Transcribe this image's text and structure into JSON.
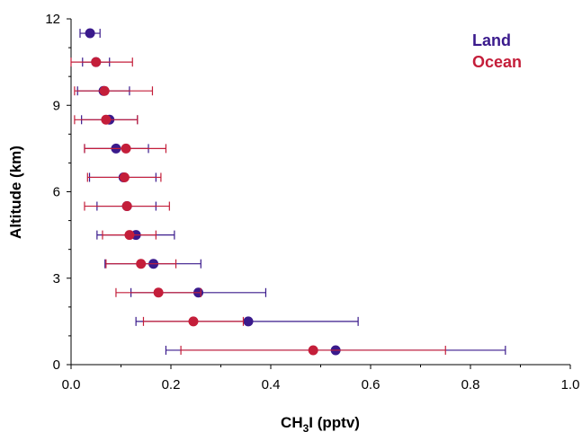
{
  "chart_data": {
    "type": "scatter",
    "title": "",
    "xlabel": {
      "main": "CH",
      "sub": "3",
      "rest": "I (pptv)"
    },
    "ylabel": "Altitude (km)",
    "xlim": [
      0.0,
      1.0
    ],
    "ylim": [
      0,
      12
    ],
    "x_ticks": [
      "0.0",
      "0.2",
      "0.4",
      "0.6",
      "0.8",
      "1.0"
    ],
    "y_ticks": [
      "0",
      "3",
      "6",
      "9",
      "12"
    ],
    "legend_position": "top-right",
    "grid": false,
    "series": [
      {
        "name": "Land",
        "color": "#3a1a8c",
        "points": [
          {
            "y": 0.5,
            "x": 0.53,
            "xmin": 0.19,
            "xmax": 0.87
          },
          {
            "y": 1.5,
            "x": 0.355,
            "xmin": 0.13,
            "xmax": 0.575
          },
          {
            "y": 2.5,
            "x": 0.255,
            "xmin": 0.12,
            "xmax": 0.39
          },
          {
            "y": 3.5,
            "x": 0.165,
            "xmin": 0.068,
            "xmax": 0.26
          },
          {
            "y": 4.5,
            "x": 0.13,
            "xmin": 0.052,
            "xmax": 0.207
          },
          {
            "y": 5.5,
            "x": 0.112,
            "xmin": 0.052,
            "xmax": 0.17
          },
          {
            "y": 6.5,
            "x": 0.105,
            "xmin": 0.037,
            "xmax": 0.17
          },
          {
            "y": 7.5,
            "x": 0.09,
            "xmin": 0.027,
            "xmax": 0.155
          },
          {
            "y": 8.5,
            "x": 0.077,
            "xmin": 0.021,
            "xmax": 0.133
          },
          {
            "y": 9.5,
            "x": 0.065,
            "xmin": 0.013,
            "xmax": 0.117
          },
          {
            "y": 10.5,
            "x": 0.05,
            "xmin": 0.023,
            "xmax": 0.077
          },
          {
            "y": 11.5,
            "x": 0.038,
            "xmin": 0.018,
            "xmax": 0.058
          }
        ]
      },
      {
        "name": "Ocean",
        "color": "#c41e3a",
        "points": [
          {
            "y": 0.5,
            "x": 0.485,
            "xmin": 0.22,
            "xmax": 0.75
          },
          {
            "y": 1.5,
            "x": 0.245,
            "xmin": 0.145,
            "xmax": 0.345
          },
          {
            "y": 2.5,
            "x": 0.175,
            "xmin": 0.09,
            "xmax": 0.26
          },
          {
            "y": 3.5,
            "x": 0.14,
            "xmin": 0.07,
            "xmax": 0.21
          },
          {
            "y": 4.5,
            "x": 0.117,
            "xmin": 0.063,
            "xmax": 0.17
          },
          {
            "y": 5.5,
            "x": 0.112,
            "xmin": 0.027,
            "xmax": 0.197
          },
          {
            "y": 6.5,
            "x": 0.107,
            "xmin": 0.033,
            "xmax": 0.18
          },
          {
            "y": 7.5,
            "x": 0.11,
            "xmin": 0.027,
            "xmax": 0.19
          },
          {
            "y": 8.5,
            "x": 0.07,
            "xmin": 0.007,
            "xmax": 0.133
          },
          {
            "y": 9.5,
            "x": 0.067,
            "xmin": 0.007,
            "xmax": 0.163
          },
          {
            "y": 10.5,
            "x": 0.05,
            "xmin": 0.0,
            "xmax": 0.123
          }
        ]
      }
    ]
  }
}
